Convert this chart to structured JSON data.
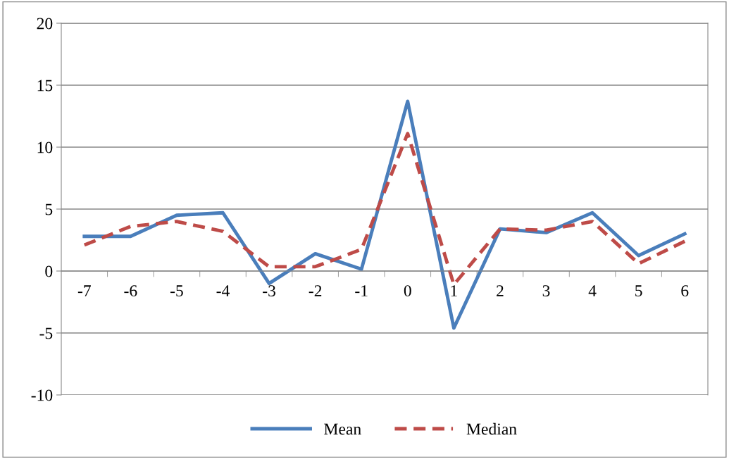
{
  "chart_data": {
    "type": "line",
    "categories": [
      "-7",
      "-6",
      "-5",
      "-4",
      "-3",
      "-2",
      "-1",
      "0",
      "1",
      "2",
      "3",
      "4",
      "5",
      "6"
    ],
    "series": [
      {
        "name": "Mean",
        "color": "#4a7ebb",
        "line_style": "solid",
        "values": [
          2.8,
          2.8,
          4.5,
          4.7,
          -1.0,
          1.4,
          0.15,
          13.7,
          -4.6,
          3.4,
          3.1,
          4.7,
          1.25,
          3.0
        ]
      },
      {
        "name": "Median",
        "color": "#be4b48",
        "line_style": "dashed",
        "values": [
          2.1,
          3.6,
          4.0,
          3.2,
          0.35,
          0.35,
          1.75,
          11.1,
          -1.1,
          3.4,
          3.3,
          4.0,
          0.6,
          2.4
        ]
      }
    ],
    "ylim": [
      -10,
      20
    ],
    "yticks": [
      -10,
      -5,
      0,
      5,
      10,
      15,
      20
    ],
    "grid": "y",
    "legend": "bottom",
    "marker": "none"
  }
}
